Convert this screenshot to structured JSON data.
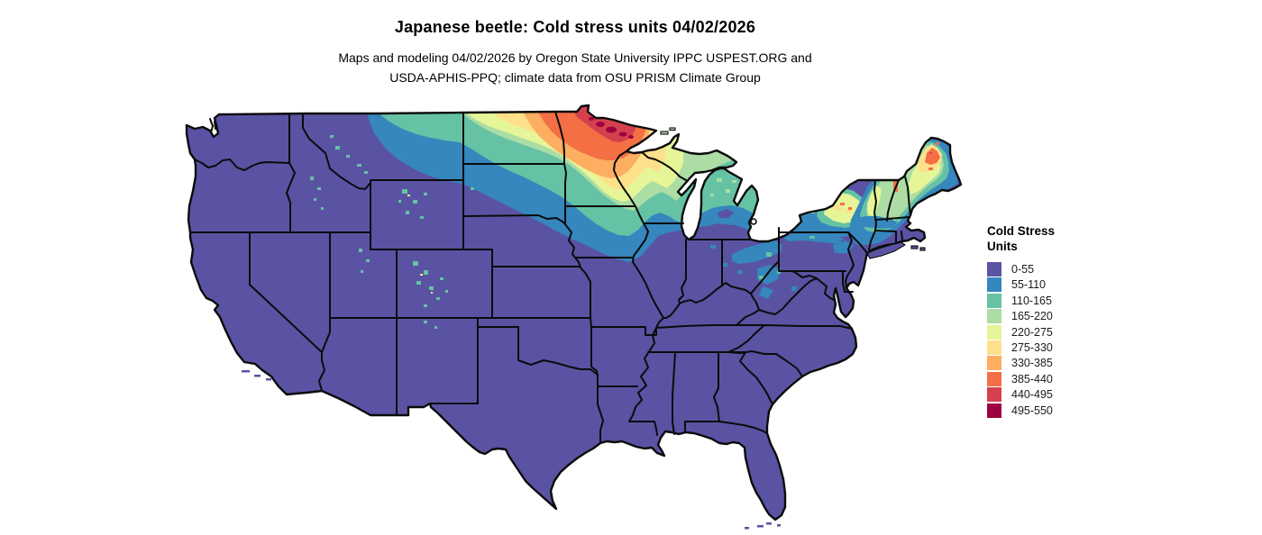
{
  "title": "Japanese beetle: Cold stress units 04/02/2026",
  "subtitle_line1": "Maps and modeling 04/02/2026 by Oregon State University IPPC USPEST.ORG and",
  "subtitle_line2": "USDA-APHIS-PPQ; climate data from OSU PRISM Climate Group",
  "legend": {
    "title_line1": "Cold Stress",
    "title_line2": "Units",
    "items": [
      {
        "label": "0-55",
        "color": "#5a53a3"
      },
      {
        "label": "55-110",
        "color": "#3587bd"
      },
      {
        "label": "110-165",
        "color": "#66c2a5"
      },
      {
        "label": "165-220",
        "color": "#abdda4"
      },
      {
        "label": "220-275",
        "color": "#e6f598"
      },
      {
        "label": "275-330",
        "color": "#fee08b"
      },
      {
        "label": "330-385",
        "color": "#fdae61"
      },
      {
        "label": "385-440",
        "color": "#f46f44"
      },
      {
        "label": "440-495",
        "color": "#d5404e"
      },
      {
        "label": "495-550",
        "color": "#9e0142"
      }
    ]
  },
  "chart_data": {
    "type": "heatmap",
    "title": "Japanese beetle: Cold stress units 04/02/2026",
    "unit": "Cold Stress Units",
    "geography": "Contiguous United States with state boundaries",
    "bins": [
      "0-55",
      "55-110",
      "110-165",
      "165-220",
      "220-275",
      "275-330",
      "330-385",
      "385-440",
      "440-495",
      "495-550"
    ],
    "bin_colors": [
      "#5a53a3",
      "#3587bd",
      "#66c2a5",
      "#abdda4",
      "#e6f598",
      "#fee08b",
      "#fdae61",
      "#f46f44",
      "#d5404e",
      "#9e0142"
    ],
    "legend_position": "right",
    "regions": [
      {
        "area": "Most of the southern, central and western US",
        "value_bin": "0-55"
      },
      {
        "area": "Northeast Montana, eastern South Dakota, northern Iowa, southern Minnesota, southern Wisconsin, lower Michigan, upstate New York, northern Pennsylvania / Ohio patches, southern New England",
        "value_bin": "55-110"
      },
      {
        "area": "North-central Montana strip, central North Dakota, central Minnesota, central Wisconsin, upper Michigan, Vermont / New Hampshire, coastal Maine, Adirondack fringe, scattered Rocky Mountain high elevations",
        "value_bin": "110-165"
      },
      {
        "area": "Southwestern North Dakota band, north-central Minnesota, northern Wisconsin, interior Maine, Adirondack core",
        "value_bin": "165-275"
      },
      {
        "area": "Northern North Dakota, northwest Minnesota band, northern Maine",
        "value_bin": "275-385"
      },
      {
        "area": "Northeastern North Dakota corner and far northern Minnesota",
        "value_bin": "385-495"
      },
      {
        "area": "Hotspot specks along the Minnesota / Canada border",
        "value_bin": "495-550"
      }
    ]
  }
}
